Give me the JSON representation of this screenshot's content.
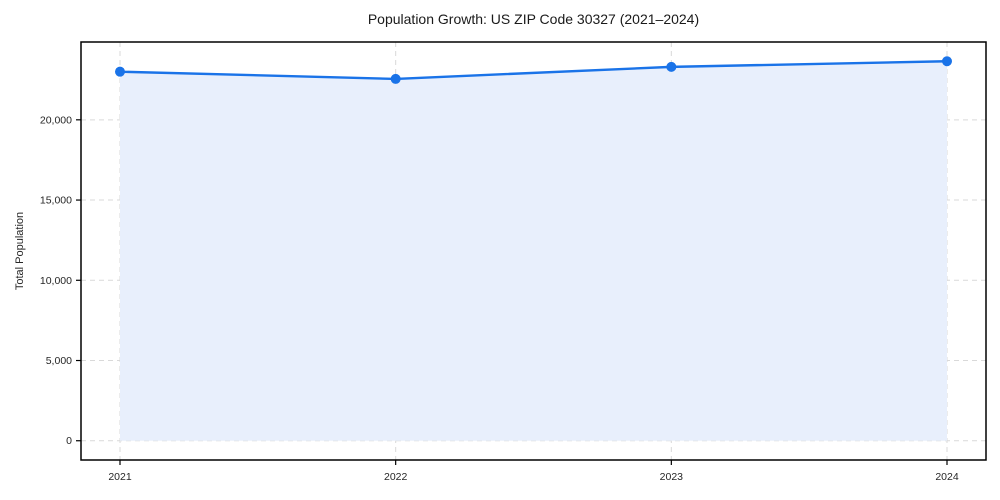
{
  "chart_data": {
    "type": "area",
    "title": "Population Growth: US ZIP Code 30327 (2021–2024)",
    "xlabel": "",
    "ylabel": "Total Population",
    "categories": [
      "2021",
      "2022",
      "2023",
      "2024"
    ],
    "series": [
      {
        "name": "Total Population",
        "values": [
          23000,
          22550,
          23300,
          23650
        ]
      }
    ],
    "yticks": {
      "values": [
        0,
        5000,
        10000,
        15000,
        20000
      ],
      "labels": [
        "0",
        "5,000",
        "10,000",
        "15,000",
        "20,000"
      ]
    },
    "ylim": [
      -1200,
      24850
    ],
    "grid": "dashed, both axes",
    "legend": "none",
    "fill_to": 0,
    "colors": {
      "line": "#1a73e8",
      "marker": "#1a73e8",
      "fill": "#e8effc",
      "grid": "#d9d9d9",
      "spine": "#000000",
      "text": "#262626"
    }
  }
}
